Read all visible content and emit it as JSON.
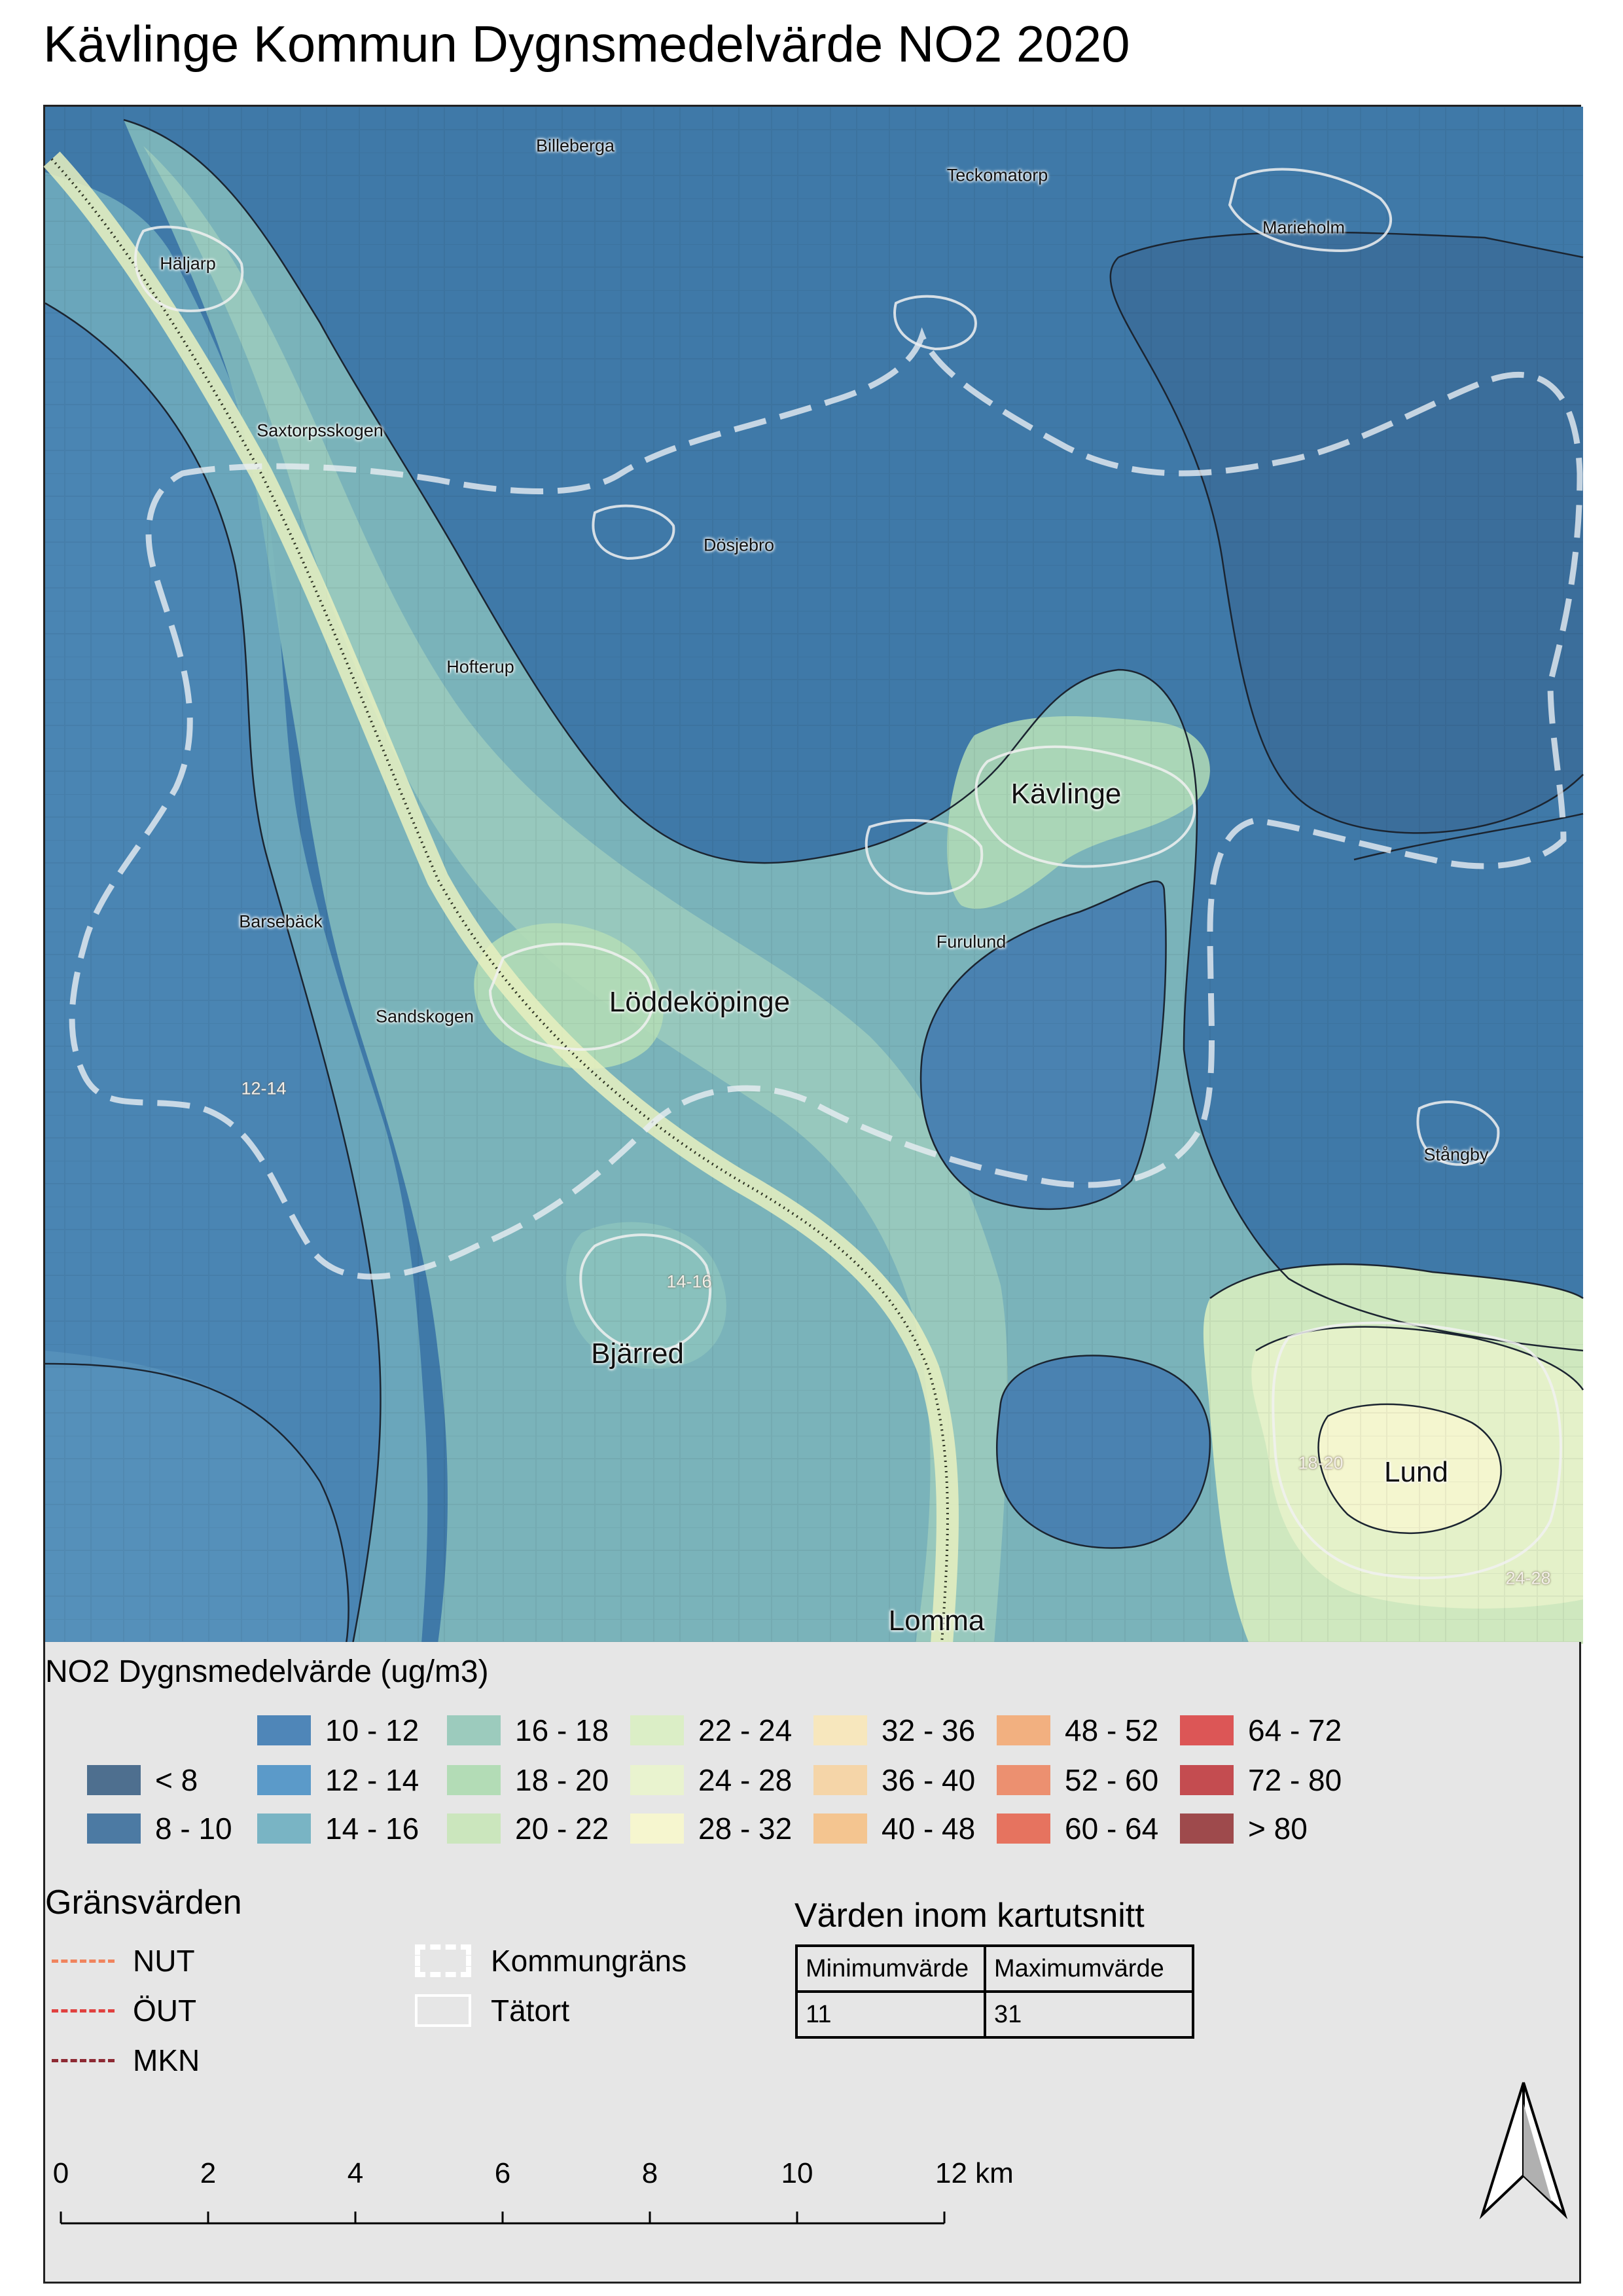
{
  "title": "Kävlinge Kommun Dygnsmedelvärde NO2 2020",
  "map": {
    "places": [
      {
        "name": "Billeberga",
        "size": "small"
      },
      {
        "name": "Teckomatorp",
        "size": "small"
      },
      {
        "name": "Marieholm",
        "size": "small"
      },
      {
        "name": "Häljarp",
        "size": "small"
      },
      {
        "name": "Saxtorpsskogen",
        "size": "small"
      },
      {
        "name": "Dösjebro",
        "size": "small"
      },
      {
        "name": "Hofterup",
        "size": "small"
      },
      {
        "name": "Kävlinge",
        "size": "big"
      },
      {
        "name": "Barsebäck",
        "size": "small"
      },
      {
        "name": "Furulund",
        "size": "small"
      },
      {
        "name": "Löddeköpinge",
        "size": "big"
      },
      {
        "name": "Sandskogen",
        "size": "small"
      },
      {
        "name": "Stångby",
        "size": "small"
      },
      {
        "name": "Bjärred",
        "size": "big"
      },
      {
        "name": "Lund",
        "size": "big"
      },
      {
        "name": "Lomma",
        "size": "big"
      }
    ],
    "contour_labels": [
      "12-14",
      "14-16",
      "18-20",
      "24-28"
    ]
  },
  "legend": {
    "title": "NO2 Dygnsmedelvärde (ug/m3)",
    "classes": [
      {
        "label": "< 8",
        "color": "#4e6f8f"
      },
      {
        "label": "8 - 10",
        "color": "#4c7aa3"
      },
      {
        "label": "10 - 12",
        "color": "#4f86b8"
      },
      {
        "label": "12 - 14",
        "color": "#5b9ac9"
      },
      {
        "label": "14 - 16",
        "color": "#79b4c4"
      },
      {
        "label": "16 - 18",
        "color": "#9ccbbd"
      },
      {
        "label": "18 - 20",
        "color": "#b3dcb6"
      },
      {
        "label": "20 - 22",
        "color": "#cbe6bd"
      },
      {
        "label": "22 - 24",
        "color": "#dbeec6"
      },
      {
        "label": "24 - 28",
        "color": "#e9f3cf"
      },
      {
        "label": "28 - 32",
        "color": "#f6f6cf"
      },
      {
        "label": "32 - 36",
        "color": "#f7e7bd"
      },
      {
        "label": "36 - 40",
        "color": "#f5d5a8"
      },
      {
        "label": "40 - 48",
        "color": "#f4c590"
      },
      {
        "label": "48 - 52",
        "color": "#f2b080"
      },
      {
        "label": "52 - 60",
        "color": "#ec9070"
      },
      {
        "label": "60 - 64",
        "color": "#e6735f"
      },
      {
        "label": "64 - 72",
        "color": "#dc5656"
      },
      {
        "label": "72 - 80",
        "color": "#c44c50"
      },
      {
        "label": "> 80",
        "color": "#9e4a4c"
      }
    ],
    "limits_title": "Gränsvärden",
    "limits": [
      {
        "label": "NUT",
        "color": "#f0845e"
      },
      {
        "label": "ÖUT",
        "color": "#e0413f"
      },
      {
        "label": "MKN",
        "color": "#8e2a33"
      }
    ],
    "symbols": [
      {
        "label": "Kommungräns"
      },
      {
        "label": "Tätort"
      }
    ],
    "extent": {
      "title": "Värden inom kartutsnitt",
      "headers": [
        "Minimumvärde",
        "Maximumvärde"
      ],
      "values": [
        "11",
        "31"
      ]
    },
    "scale": {
      "ticks": [
        "0",
        "2",
        "4",
        "6",
        "8",
        "10",
        "12 km"
      ]
    }
  }
}
